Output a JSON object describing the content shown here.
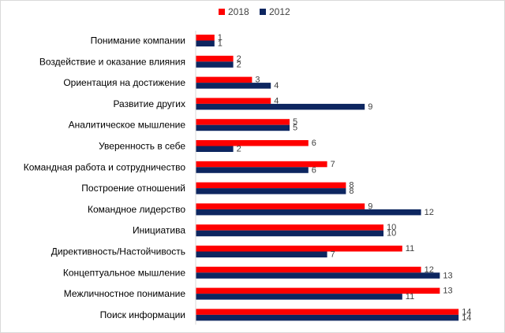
{
  "chart_data": {
    "type": "bar",
    "orientation": "horizontal",
    "categories": [
      "Понимание компании",
      "Воздействие и оказание влияния",
      "Ориентация на достижение",
      "Развитие других",
      "Аналитическое мышление",
      "Уверенность в себе",
      "Командная работа и сотрудничество",
      "Построение отношений",
      "Командное лидерство",
      "Инициатива",
      "Директивность/Настойчивость",
      "Концептуальное мышление",
      "Межличностное понимание",
      "Поиск информации"
    ],
    "series": [
      {
        "name": "2018",
        "color": "#ff0000",
        "values": [
          1,
          2,
          3,
          4,
          5,
          6,
          7,
          8,
          9,
          10,
          11,
          12,
          13,
          14
        ]
      },
      {
        "name": "2012",
        "color": "#0d2660",
        "values": [
          1,
          2,
          4,
          9,
          5,
          2,
          6,
          8,
          12,
          10,
          7,
          13,
          11,
          14
        ]
      }
    ],
    "title": "",
    "xlabel": "",
    "ylabel": "",
    "xlim": [
      0,
      14
    ],
    "grid": false,
    "legend_position": "top-center",
    "data_labels": true
  }
}
